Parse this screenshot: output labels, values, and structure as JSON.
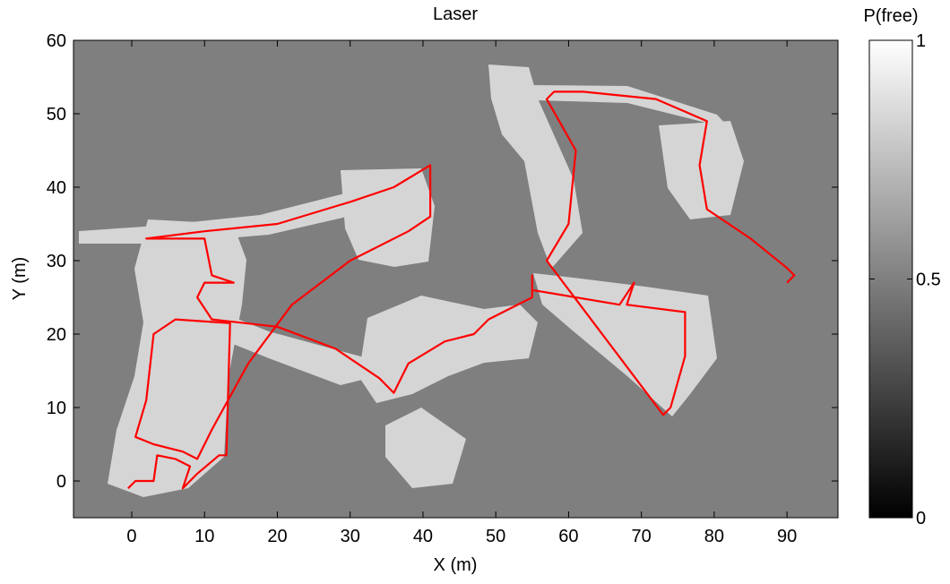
{
  "chart_data": {
    "type": "line",
    "title": "Laser",
    "x_label": "X (m)",
    "y_label": "Y (m)",
    "xlim": [
      -8,
      97
    ],
    "ylim": [
      -5,
      60
    ],
    "xticks": [
      0,
      10,
      20,
      30,
      40,
      50,
      60,
      70,
      80,
      90
    ],
    "yticks": [
      0,
      10,
      20,
      30,
      40,
      50,
      60
    ],
    "background": "#7f7f7f",
    "series": [
      {
        "color": "#ff0000",
        "x": [
          -0.5,
          0.5,
          3,
          3.5,
          6,
          8,
          7,
          9,
          12,
          13,
          13.5,
          6,
          3,
          2,
          0.5,
          3,
          7,
          9,
          11,
          16,
          22,
          30,
          38,
          41,
          41,
          36,
          30,
          20,
          10,
          2,
          10,
          11,
          14,
          10,
          9,
          11,
          20,
          28,
          34,
          36,
          38,
          43,
          47,
          49,
          55,
          55,
          55,
          67,
          69,
          68,
          76,
          76,
          74,
          73,
          57,
          60,
          61,
          57,
          58,
          62,
          72,
          79,
          78,
          79,
          85,
          90,
          91,
          90
        ],
        "y": [
          -1,
          0,
          0,
          3.5,
          3,
          2,
          -1,
          1,
          3.5,
          3.5,
          21.5,
          22,
          20,
          11,
          6,
          5,
          4,
          3,
          7,
          16,
          24,
          30,
          34,
          36,
          43,
          40,
          38,
          35,
          34,
          33,
          33,
          28,
          27,
          27,
          25,
          22,
          21,
          18,
          14,
          12,
          16,
          19,
          20,
          22,
          25,
          28,
          26,
          24,
          27,
          24,
          23,
          17,
          10,
          9,
          30,
          35,
          45,
          52,
          53,
          53,
          52,
          49,
          43,
          37,
          33,
          29,
          28,
          27
        ]
      }
    ],
    "colorbar": {
      "label": "P(free)",
      "lim": [
        0,
        1
      ],
      "ticks": [
        0,
        0.5,
        1
      ]
    }
  }
}
